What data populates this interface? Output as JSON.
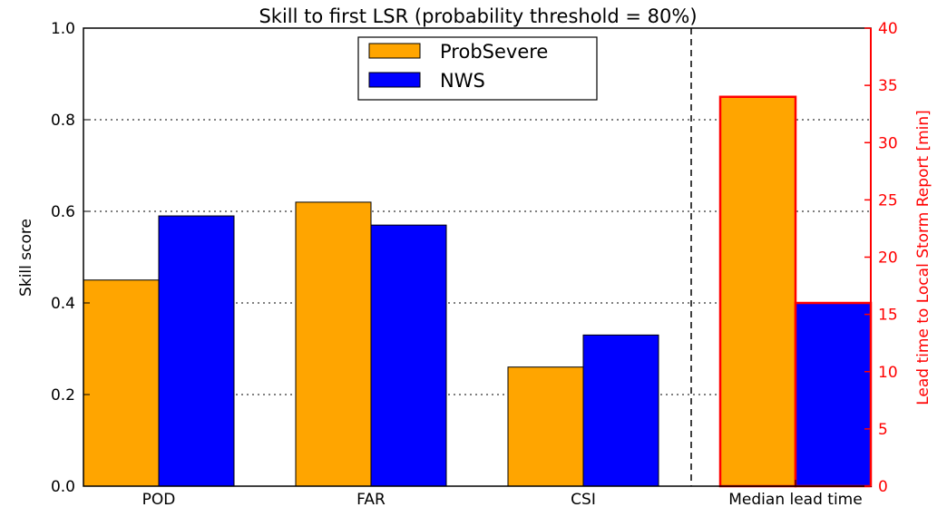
{
  "chart_data": {
    "type": "bar",
    "title": "Skill to first LSR (probability threshold = 80%)",
    "ylabel": "Skill score",
    "ylabel_right": "Lead time to Local Storm Report [min]",
    "categories": [
      "POD",
      "FAR",
      "CSI",
      "Median lead time"
    ],
    "series": [
      {
        "name": "ProbSevere",
        "color": "#ffa500",
        "values": [
          0.45,
          0.62,
          0.26,
          null
        ]
      },
      {
        "name": "NWS",
        "color": "#0000ff",
        "values": [
          0.59,
          0.57,
          0.33,
          null
        ]
      }
    ],
    "secondary": {
      "category": "Median lead time",
      "values": [
        34,
        16
      ],
      "edge_color": "#ff0000"
    },
    "ylim": [
      0,
      1
    ],
    "yticks": [
      "0.0",
      "0.2",
      "0.4",
      "0.6",
      "0.8",
      "1.0"
    ],
    "ylim_right": [
      0,
      40
    ],
    "yticks_right": [
      "0",
      "5",
      "10",
      "15",
      "20",
      "25",
      "30",
      "35",
      "40"
    ],
    "grid": "horizontal dotted",
    "divider": "dashed vertical line before Median lead time",
    "legend": "top-center"
  }
}
